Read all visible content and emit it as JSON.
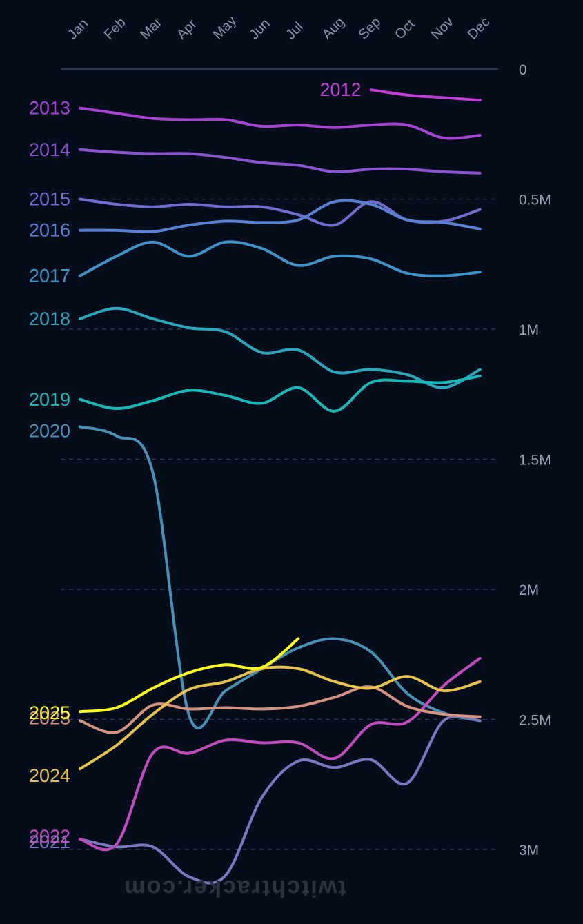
{
  "chart_data": {
    "type": "line",
    "title": "",
    "xlabel": "",
    "ylabel": "",
    "y_axis_side": "right",
    "y_inverted": true,
    "ylim": [
      0,
      3000000
    ],
    "y_ticks": [
      {
        "value": 0,
        "label": "0"
      },
      {
        "value": 500000,
        "label": "0.5M"
      },
      {
        "value": 1000000,
        "label": "1M"
      },
      {
        "value": 1500000,
        "label": "1.5M"
      },
      {
        "value": 2000000,
        "label": "2M"
      },
      {
        "value": 2500000,
        "label": "2.5M"
      },
      {
        "value": 3000000,
        "label": "3M"
      }
    ],
    "categories": [
      "Jan",
      "Feb",
      "Mar",
      "Apr",
      "May",
      "Jun",
      "Jul",
      "Aug",
      "Sep",
      "Oct",
      "Nov",
      "Dec"
    ],
    "watermark": "twitchtracker.com",
    "series": [
      {
        "name": "2012",
        "color": "#c23ed6",
        "values": [
          null,
          null,
          null,
          null,
          null,
          null,
          null,
          null,
          80000,
          100000,
          110000,
          120000
        ]
      },
      {
        "name": "2013",
        "color": "#a543d2",
        "values": [
          150000,
          170000,
          190000,
          195000,
          195000,
          220000,
          215000,
          225000,
          215000,
          215000,
          265000,
          255000
        ]
      },
      {
        "name": "2014",
        "color": "#8a55cf",
        "values": [
          310000,
          320000,
          325000,
          325000,
          340000,
          360000,
          370000,
          395000,
          385000,
          385000,
          395000,
          400000
        ]
      },
      {
        "name": "2015",
        "color": "#6f6dd0",
        "values": [
          500000,
          520000,
          530000,
          520000,
          530000,
          530000,
          560000,
          600000,
          510000,
          580000,
          585000,
          540000
        ]
      },
      {
        "name": "2016",
        "color": "#5a82d4",
        "values": [
          620000,
          620000,
          625000,
          600000,
          585000,
          590000,
          580000,
          510000,
          520000,
          580000,
          590000,
          615000
        ]
      },
      {
        "name": "2017",
        "color": "#3e93c8",
        "values": [
          795000,
          720000,
          665000,
          720000,
          665000,
          690000,
          755000,
          720000,
          730000,
          785000,
          795000,
          780000
        ]
      },
      {
        "name": "2018",
        "color": "#2aa6bd",
        "values": [
          960000,
          920000,
          960000,
          995000,
          1010000,
          1090000,
          1080000,
          1165000,
          1155000,
          1175000,
          1225000,
          1155000
        ]
      },
      {
        "name": "2019",
        "color": "#19b8b8",
        "values": [
          1270000,
          1305000,
          1275000,
          1235000,
          1255000,
          1285000,
          1225000,
          1315000,
          1205000,
          1200000,
          1205000,
          1180000
        ]
      },
      {
        "name": "2020",
        "color": "#4a8fb5",
        "values": [
          1375000,
          1410000,
          1550000,
          2485000,
          2390000,
          2305000,
          2225000,
          2190000,
          2240000,
          2400000,
          2475000,
          2505000
        ]
      },
      {
        "name": "2021",
        "color": "#7a78c0",
        "values": [
          2960000,
          2990000,
          2990000,
          3105000,
          3100000,
          2800000,
          2660000,
          2685000,
          2655000,
          2745000,
          2505000,
          2505000
        ]
      },
      {
        "name": "2022",
        "color": "#c04cbd",
        "values": [
          2960000,
          2980000,
          2630000,
          2630000,
          2580000,
          2590000,
          2590000,
          2650000,
          2520000,
          2510000,
          2370000,
          2265000
        ]
      },
      {
        "name": "2023",
        "color": "#d49280",
        "values": [
          2505000,
          2550000,
          2445000,
          2460000,
          2455000,
          2460000,
          2450000,
          2415000,
          2375000,
          2450000,
          2480000,
          2490000
        ]
      },
      {
        "name": "2024",
        "color": "#e7c34d",
        "values": [
          2690000,
          2600000,
          2480000,
          2385000,
          2355000,
          2305000,
          2305000,
          2355000,
          2380000,
          2335000,
          2390000,
          2355000
        ]
      },
      {
        "name": "2025",
        "color": "#ffff1a",
        "highlight": true,
        "values": [
          2470000,
          2455000,
          2380000,
          2320000,
          2290000,
          2300000,
          2190000,
          null,
          null,
          null,
          null,
          null
        ]
      }
    ]
  }
}
